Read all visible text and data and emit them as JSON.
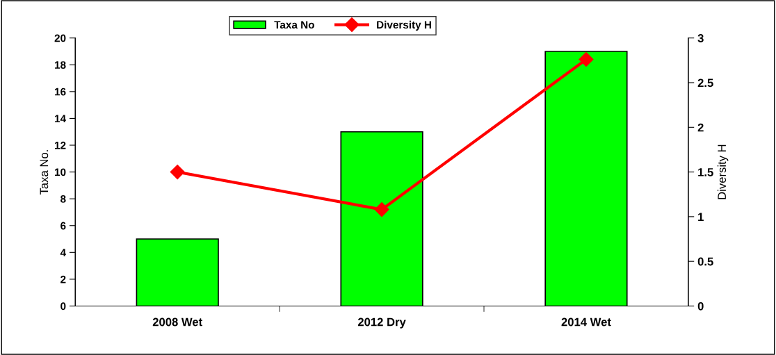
{
  "chart_data": {
    "type": "bar",
    "categories": [
      "2008 Wet",
      "2012 Dry",
      "2014 Wet"
    ],
    "ylabel": "Taxa No.",
    "y2label": "Diversity H",
    "series": [
      {
        "name": "Taxa No",
        "color": "#00ff00",
        "values": [
          5,
          13,
          19
        ]
      },
      {
        "name": "Diversity H",
        "type": "line",
        "axis": "y2",
        "color": "#ff0000",
        "marker": "diamond",
        "values": [
          1.5,
          1.08,
          2.76
        ]
      }
    ],
    "ylim": [
      0,
      20
    ],
    "yticks": [
      0,
      2,
      4,
      6,
      8,
      10,
      12,
      14,
      16,
      18,
      20
    ],
    "y2lim": [
      0,
      3
    ],
    "y2ticks": [
      0,
      0.5,
      1,
      1.5,
      2,
      2.5,
      3
    ],
    "grid": false,
    "legend": "top"
  }
}
